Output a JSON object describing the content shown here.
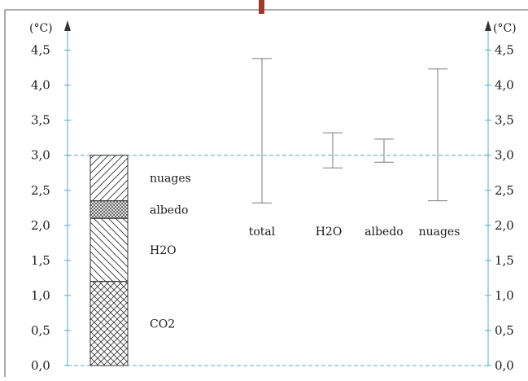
{
  "chart_data": {
    "type": "bar",
    "ylabel_left": "(°C)",
    "ylabel_right": "(°C)",
    "ylim": [
      0,
      4.5
    ],
    "yticks": [
      "0,0",
      "0,5",
      "1,0",
      "1,5",
      "2,0",
      "2,5",
      "3,0",
      "3,5",
      "4,0",
      "4,5"
    ],
    "reference_line": 3.0,
    "stacked_bar": {
      "segments": [
        {
          "name": "CO2",
          "from": 0.0,
          "to": 1.2,
          "pattern": "crosshatch"
        },
        {
          "name": "H2O",
          "from": 1.2,
          "to": 2.1,
          "pattern": "diagonal-back"
        },
        {
          "name": "albedo",
          "from": 2.1,
          "to": 2.35,
          "pattern": "dense-crosshatch"
        },
        {
          "name": "nuages",
          "from": 2.35,
          "to": 3.0,
          "pattern": "diagonal-forward"
        }
      ]
    },
    "error_bars": [
      {
        "label": "total",
        "low": 2.32,
        "high": 4.38,
        "center": 3.0
      },
      {
        "label": "H2O",
        "low": 2.82,
        "high": 3.32,
        "center": 3.0
      },
      {
        "label": "albedo",
        "low": 2.9,
        "high": 3.23,
        "center": 3.0
      },
      {
        "label": "nuages",
        "low": 2.35,
        "high": 4.23,
        "center": 3.0
      }
    ],
    "colors": {
      "axis": "#5aa9c8",
      "frame": "#555555",
      "bar_outline": "#333333",
      "reference_line": "#5aa9c8",
      "error_bar": "#7a7a7a",
      "top_marker": "#9c3b2a"
    }
  }
}
